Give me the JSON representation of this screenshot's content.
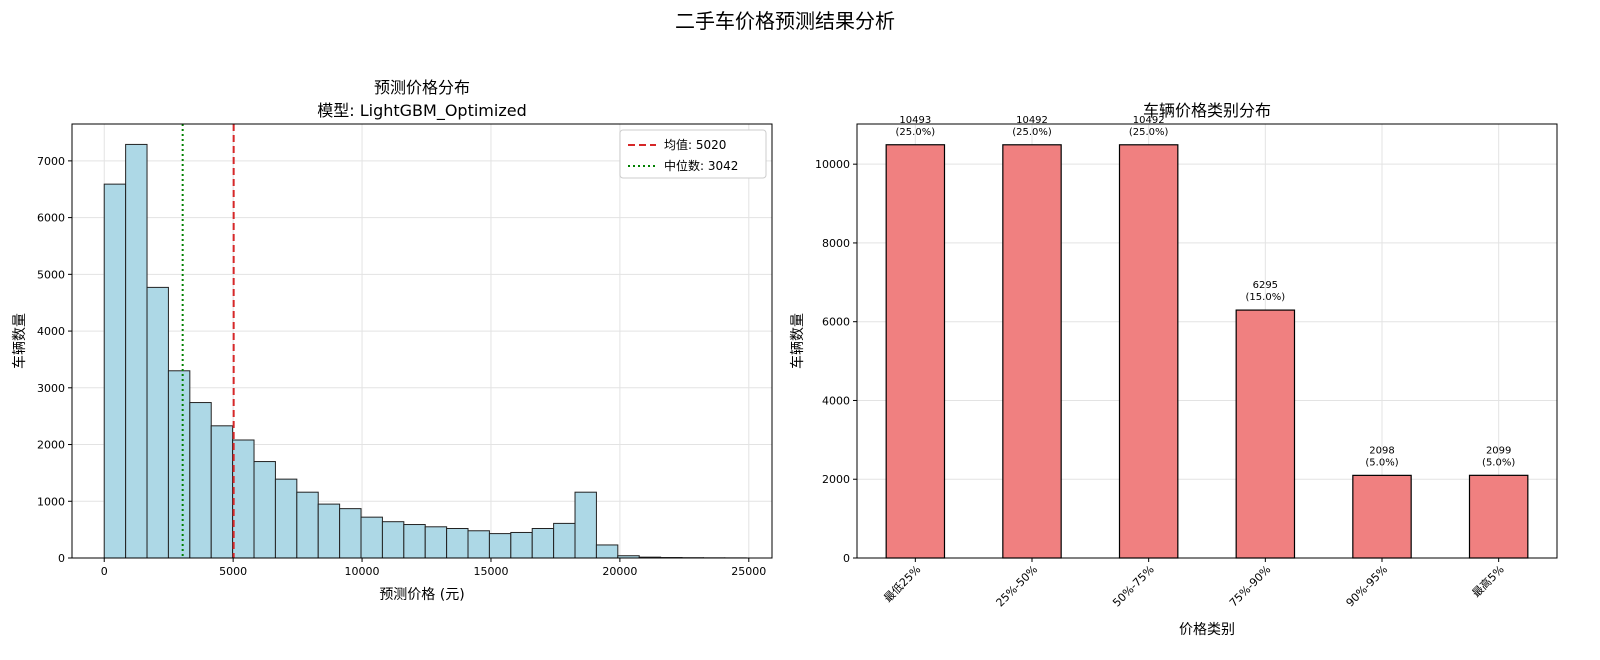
{
  "suptitle": "二手车价格预测结果分析",
  "chart_data": [
    {
      "type": "bar",
      "subtype": "histogram",
      "title": "预测价格分布",
      "subtitle": "模型: LightGBM_Optimized",
      "xlabel": "预测价格 (元)",
      "ylabel": "车辆数量",
      "xlim": [
        -1250,
        25900
      ],
      "ylim": [
        0,
        7650
      ],
      "xticks": [
        0,
        5000,
        10000,
        15000,
        20000,
        25000
      ],
      "yticks": [
        0,
        1000,
        2000,
        3000,
        4000,
        5000,
        6000,
        7000
      ],
      "bin_start": 0,
      "bin_width": 830,
      "counts": [
        6590,
        7290,
        4770,
        3300,
        2740,
        2330,
        2080,
        1700,
        1390,
        1160,
        950,
        870,
        720,
        640,
        590,
        550,
        520,
        480,
        430,
        450,
        520,
        610,
        1160,
        230,
        40,
        15,
        8,
        5,
        3,
        2
      ],
      "bar_color": "#add8e6",
      "reference_lines": [
        {
          "label": "均值: 5020",
          "x": 5020,
          "color": "#d62728",
          "style": "dashed"
        },
        {
          "label": "中位数: 3042",
          "x": 3042,
          "color": "#008000",
          "style": "dotted"
        }
      ],
      "legend_position": "top-right",
      "grid": true
    },
    {
      "type": "bar",
      "title": "车辆价格类别分布",
      "xlabel": "价格类别",
      "ylabel": "车辆数量",
      "ylim": [
        0,
        11020
      ],
      "yticks": [
        0,
        2000,
        4000,
        6000,
        8000,
        10000
      ],
      "categories": [
        "最低25%",
        "25%-50%",
        "50%-75%",
        "75%-90%",
        "90%-95%",
        "最高5%"
      ],
      "values": [
        10493,
        10492,
        10492,
        6295,
        2098,
        2099
      ],
      "percent_labels": [
        "(25.0%)",
        "(25.0%)",
        "(25.0%)",
        "(15.0%)",
        "(5.0%)",
        "(5.0%)"
      ],
      "bar_color": "#f08080",
      "grid": true
    }
  ]
}
